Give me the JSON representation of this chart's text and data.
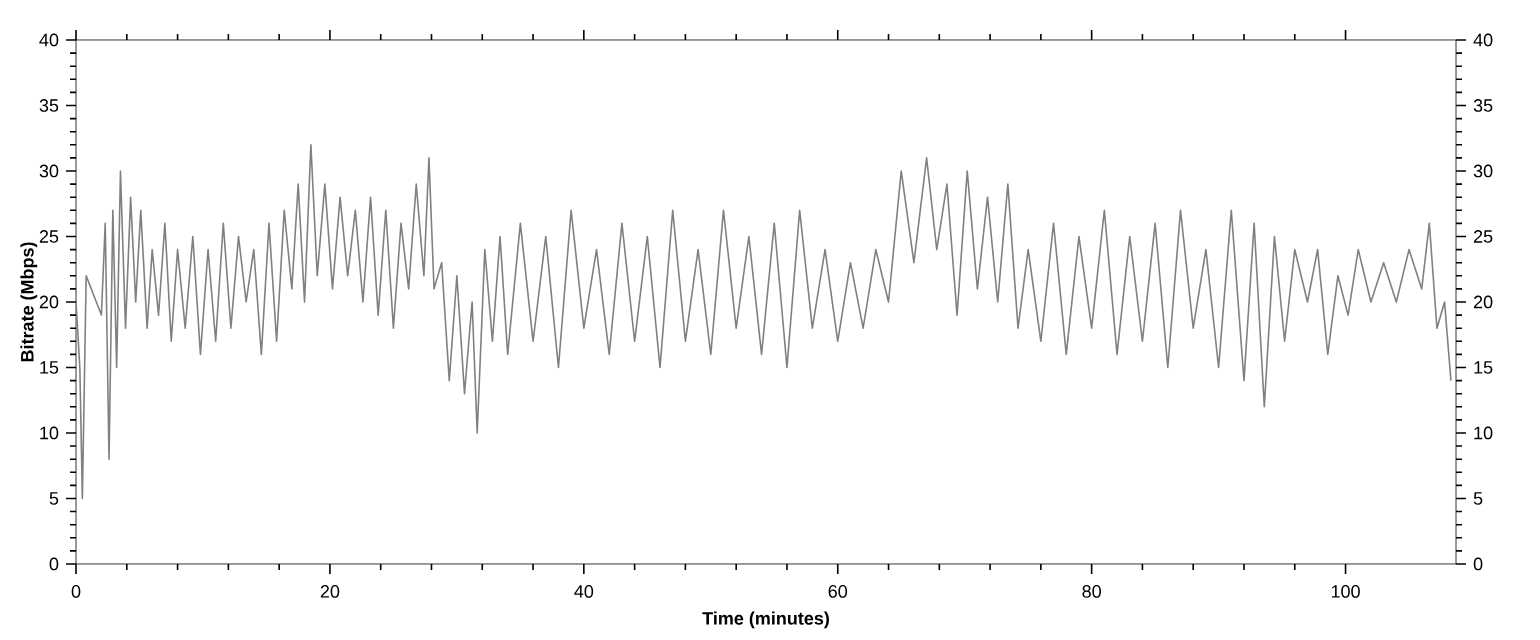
{
  "chart_data": {
    "type": "line",
    "xlabel": "Time (minutes)",
    "ylabel": "Bitrate (Mbps)",
    "x": [
      0,
      0.3,
      0.5,
      0.8,
      1.2,
      1.6,
      2.0,
      2.3,
      2.6,
      2.9,
      3.2,
      3.5,
      3.9,
      4.3,
      4.7,
      5.1,
      5.6,
      6.0,
      6.5,
      7.0,
      7.5,
      8.0,
      8.6,
      9.2,
      9.8,
      10.4,
      11.0,
      11.6,
      12.2,
      12.8,
      13.4,
      14.0,
      14.6,
      15.2,
      15.8,
      16.4,
      17.0,
      17.5,
      18.0,
      18.5,
      19.0,
      19.6,
      20.2,
      20.8,
      21.4,
      22.0,
      22.6,
      23.2,
      23.8,
      24.4,
      25.0,
      25.6,
      26.2,
      26.8,
      27.4,
      27.8,
      28.2,
      28.8,
      29.4,
      30.0,
      30.6,
      31.2,
      31.6,
      32.2,
      32.8,
      33.4,
      34.0,
      35.0,
      36.0,
      37.0,
      38.0,
      39.0,
      40.0,
      41.0,
      42.0,
      43.0,
      44.0,
      45.0,
      46.0,
      47.0,
      48.0,
      49.0,
      50.0,
      51.0,
      52.0,
      53.0,
      54.0,
      55.0,
      56.0,
      57.0,
      58.0,
      59.0,
      60.0,
      61.0,
      62.0,
      63.0,
      64.0,
      65.0,
      66.0,
      67.0,
      67.8,
      68.6,
      69.4,
      70.2,
      71.0,
      71.8,
      72.6,
      73.4,
      74.2,
      75.0,
      76.0,
      77.0,
      78.0,
      79.0,
      80.0,
      81.0,
      82.0,
      83.0,
      84.0,
      85.0,
      86.0,
      87.0,
      88.0,
      89.0,
      90.0,
      91.0,
      92.0,
      92.8,
      93.6,
      94.4,
      95.2,
      96.0,
      97.0,
      97.8,
      98.6,
      99.4,
      100.2,
      101.0,
      102.0,
      103.0,
      104.0,
      105.0,
      106.0,
      106.6,
      107.2,
      107.8,
      108.3
    ],
    "series": [
      {
        "color": "#808080",
        "values": [
          20,
          15,
          5,
          22,
          21,
          20,
          19,
          26,
          8,
          27,
          15,
          30,
          18,
          28,
          20,
          27,
          18,
          24,
          19,
          26,
          17,
          24,
          18,
          25,
          16,
          24,
          17,
          26,
          18,
          25,
          20,
          24,
          16,
          26,
          17,
          27,
          21,
          29,
          20,
          32,
          22,
          29,
          21,
          28,
          22,
          27,
          20,
          28,
          19,
          27,
          18,
          26,
          21,
          29,
          22,
          31,
          21,
          23,
          14,
          22,
          13,
          20,
          10,
          24,
          17,
          25,
          16,
          26,
          17,
          25,
          15,
          27,
          18,
          24,
          16,
          26,
          17,
          25,
          15,
          27,
          17,
          24,
          16,
          27,
          18,
          25,
          16,
          26,
          15,
          27,
          18,
          24,
          17,
          23,
          18,
          24,
          20,
          30,
          23,
          31,
          24,
          29,
          19,
          30,
          21,
          28,
          20,
          29,
          18,
          24,
          17,
          26,
          16,
          25,
          18,
          27,
          16,
          25,
          17,
          26,
          15,
          27,
          18,
          24,
          15,
          27,
          14,
          26,
          12,
          25,
          17,
          24,
          20,
          24,
          16,
          22,
          19,
          24,
          20,
          23,
          20,
          24,
          21,
          26,
          18,
          20,
          14
        ]
      }
    ],
    "xlim": [
      0,
      108.7
    ],
    "ylim": [
      0,
      40
    ],
    "xticks": [
      0,
      20,
      40,
      60,
      80,
      100
    ],
    "yticks": [
      0,
      5,
      10,
      15,
      20,
      25,
      30,
      35,
      40
    ],
    "y2lim": [
      0,
      40
    ],
    "y2ticks": [
      0,
      5,
      10,
      15,
      20,
      25,
      30,
      35,
      40
    ],
    "grid": false,
    "marker": "none",
    "line_style": "solid"
  }
}
